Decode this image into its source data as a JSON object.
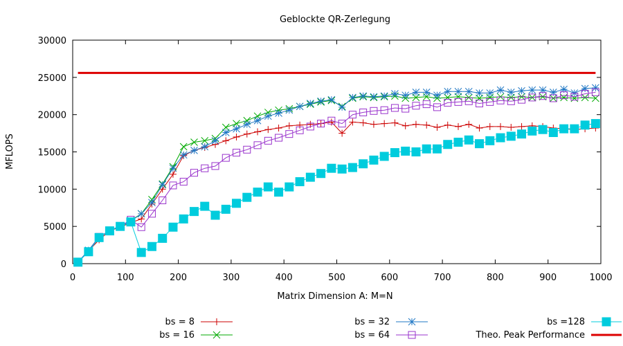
{
  "chart_data": {
    "type": "line",
    "title": "Geblockte QR-Zerlegung",
    "xlabel": "Matrix Dimension A: M=N",
    "ylabel": "MFLOPS",
    "xlim": [
      0,
      1000
    ],
    "ylim": [
      0,
      30000
    ],
    "x_ticks": [
      0,
      100,
      200,
      300,
      400,
      500,
      600,
      700,
      800,
      900,
      1000
    ],
    "y_ticks": [
      0,
      5000,
      10000,
      15000,
      20000,
      25000,
      30000
    ],
    "grid": false,
    "legend_position": "bottom",
    "x": [
      10,
      30,
      50,
      70,
      90,
      110,
      130,
      150,
      170,
      190,
      210,
      230,
      250,
      270,
      290,
      310,
      330,
      350,
      370,
      390,
      410,
      430,
      450,
      470,
      490,
      510,
      530,
      550,
      570,
      590,
      610,
      630,
      650,
      670,
      690,
      710,
      730,
      750,
      770,
      790,
      810,
      830,
      850,
      870,
      890,
      910,
      930,
      950,
      970,
      990
    ],
    "series": [
      {
        "name": "bs =  8",
        "color": "#cc0000",
        "marker": "plus",
        "values": [
          200,
          1700,
          3200,
          4400,
          4900,
          5500,
          6000,
          8000,
          10000,
          12000,
          14500,
          15200,
          15600,
          16000,
          16500,
          17000,
          17400,
          17700,
          18000,
          18200,
          18500,
          18600,
          18700,
          18800,
          19000,
          17500,
          19000,
          18900,
          18700,
          18800,
          18900,
          18500,
          18700,
          18600,
          18300,
          18600,
          18400,
          18700,
          18200,
          18400,
          18400,
          18300,
          18400,
          18500,
          18400,
          18200,
          18100,
          18000,
          18100,
          18200
        ]
      },
      {
        "name": "bs = 16",
        "color": "#00aa00",
        "marker": "x",
        "values": [
          200,
          1700,
          3600,
          4400,
          5000,
          5800,
          6700,
          8600,
          10700,
          13000,
          15700,
          16300,
          16500,
          16800,
          18300,
          18800,
          19200,
          19800,
          20300,
          20600,
          20800,
          21100,
          21400,
          21700,
          21900,
          21100,
          22200,
          22400,
          22300,
          22400,
          22500,
          22200,
          22300,
          22400,
          22200,
          22300,
          22400,
          22300,
          22200,
          22300,
          22400,
          22300,
          22400,
          22300,
          22400,
          22200,
          22300,
          22200,
          22300,
          22200
        ]
      },
      {
        "name": "bs = 32",
        "color": "#1f77c4",
        "marker": "star",
        "values": [
          200,
          1800,
          3600,
          4400,
          5100,
          5700,
          6700,
          8200,
          10600,
          12800,
          14600,
          15200,
          15700,
          16500,
          17600,
          18100,
          18700,
          19200,
          19800,
          20200,
          20600,
          21100,
          21500,
          21800,
          22000,
          21000,
          22300,
          22500,
          22400,
          22500,
          22800,
          22600,
          23000,
          23000,
          22600,
          23100,
          23100,
          23100,
          22900,
          22900,
          23300,
          23000,
          23200,
          23300,
          23300,
          23000,
          23400,
          22900,
          23500,
          23600
        ]
      },
      {
        "name": "bs = 64",
        "color": "#9933cc",
        "marker": "square-open",
        "values": [
          200,
          1600,
          3600,
          4400,
          5000,
          5900,
          4900,
          6700,
          8500,
          10500,
          11000,
          12200,
          12800,
          13100,
          14200,
          14900,
          15300,
          15900,
          16500,
          16900,
          17400,
          17900,
          18400,
          18800,
          19200,
          18800,
          20000,
          20300,
          20500,
          20600,
          20900,
          20800,
          21200,
          21400,
          21000,
          21600,
          21700,
          21800,
          21500,
          21700,
          21900,
          21800,
          22000,
          22300,
          22500,
          22200,
          22600,
          22400,
          22800,
          23000
        ]
      },
      {
        "name": "bs =128",
        "color": "#00ccdd",
        "marker": "square-filled",
        "values": [
          200,
          1600,
          3500,
          4400,
          5000,
          5600,
          1500,
          2300,
          3400,
          4900,
          6000,
          7000,
          7700,
          6500,
          7300,
          8100,
          8900,
          9600,
          10300,
          9600,
          10300,
          11000,
          11600,
          12100,
          12800,
          12700,
          12900,
          13400,
          13900,
          14400,
          14900,
          15100,
          15000,
          15400,
          15400,
          16000,
          16300,
          16600,
          16100,
          16500,
          16900,
          17100,
          17400,
          17800,
          18000,
          17600,
          18100,
          18100,
          18600,
          18800
        ]
      },
      {
        "name": "Theo. Peak Performance",
        "color": "#dd0000",
        "marker": "none",
        "constant": 25600
      }
    ]
  }
}
